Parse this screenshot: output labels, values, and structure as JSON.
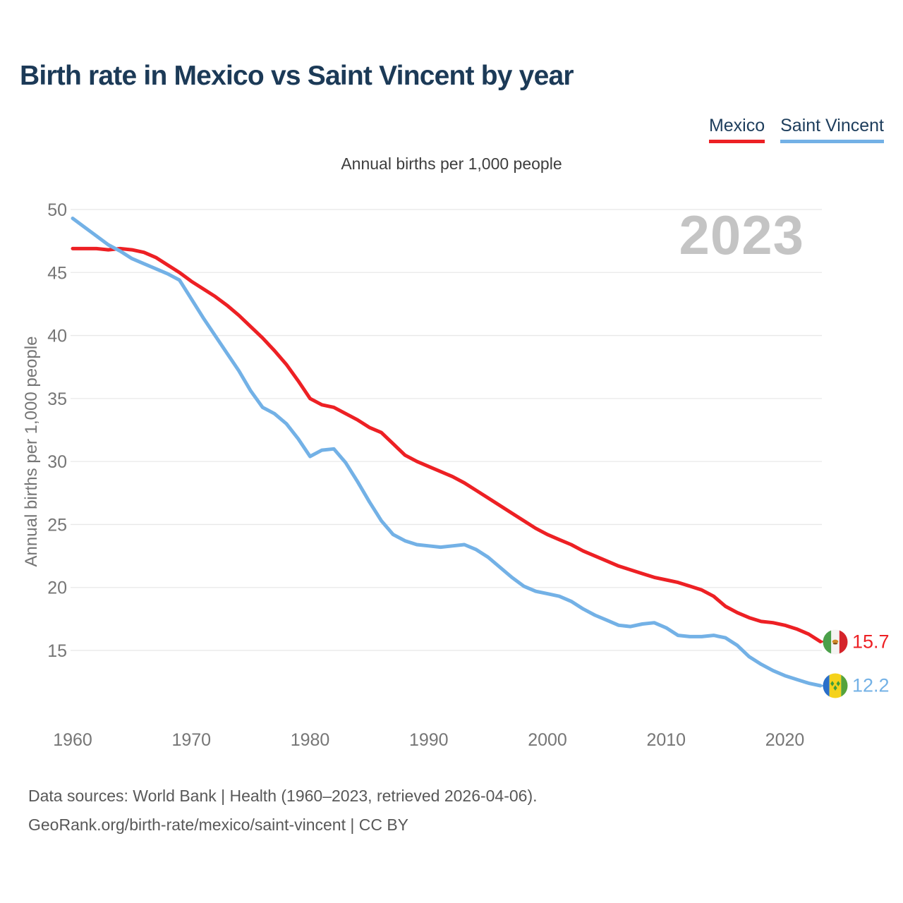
{
  "header": {
    "title": "Birth rate in Mexico vs Saint Vincent by year"
  },
  "legend": {
    "items": [
      {
        "label": "Mexico",
        "color": "#ed2024"
      },
      {
        "label": "Saint Vincent",
        "color": "#73b1e6"
      }
    ]
  },
  "chart": {
    "subtitle": "Annual births per 1,000 people",
    "y_axis_title": "Annual births per 1,000 people",
    "watermark": "2023",
    "end_labels": {
      "mexico": "15.7",
      "saint_vincent": "12.2"
    }
  },
  "footer": {
    "line1": "Data sources: World Bank | Health (1960–2023, retrieved 2026-04-06).",
    "line2": "GeoRank.org/birth-rate/mexico/saint-vincent | CC BY"
  },
  "chart_data": {
    "type": "line",
    "title": "Birth rate in Mexico vs Saint Vincent by year",
    "subtitle": "Annual births per 1,000 people",
    "ylabel": "Annual births per 1,000 people",
    "x_start": 1960,
    "x_end": 2023,
    "x_ticks": [
      1960,
      1970,
      1980,
      1990,
      2000,
      2010,
      2020
    ],
    "y_ticks": [
      15,
      20,
      25,
      30,
      35,
      40,
      45,
      50
    ],
    "ylim": [
      15,
      50
    ],
    "grid": "horizontal",
    "legend_position": "top-right",
    "colors": {
      "grid": "#e8e8e8",
      "tick_text": "#767676",
      "watermark": "#c4c4c4"
    },
    "series": [
      {
        "name": "Mexico",
        "color": "#ed2024",
        "end_label": "15.7",
        "flag_icon": "mexico-flag-icon",
        "values": [
          46.9,
          46.9,
          46.9,
          46.8,
          46.9,
          46.8,
          46.6,
          46.2,
          45.6,
          45.0,
          44.3,
          43.7,
          43.1,
          42.4,
          41.6,
          40.7,
          39.8,
          38.8,
          37.7,
          36.4,
          35.0,
          34.5,
          34.3,
          33.8,
          33.3,
          32.7,
          32.3,
          31.4,
          30.5,
          30.0,
          29.6,
          29.2,
          28.8,
          28.3,
          27.7,
          27.1,
          26.5,
          25.9,
          25.3,
          24.7,
          24.2,
          23.8,
          23.4,
          22.9,
          22.5,
          22.1,
          21.7,
          21.4,
          21.1,
          20.8,
          20.6,
          20.4,
          20.1,
          19.8,
          19.3,
          18.5,
          18.0,
          17.6,
          17.3,
          17.2,
          17.0,
          16.7,
          16.3,
          15.7
        ]
      },
      {
        "name": "Saint Vincent",
        "color": "#73b1e6",
        "end_label": "12.2",
        "flag_icon": "saint-vincent-flag-icon",
        "values": [
          49.3,
          48.6,
          47.9,
          47.2,
          46.7,
          46.1,
          45.7,
          45.3,
          44.9,
          44.4,
          42.9,
          41.4,
          40.0,
          38.6,
          37.2,
          35.6,
          34.3,
          33.8,
          33.0,
          31.8,
          30.4,
          30.9,
          31.0,
          29.9,
          28.4,
          26.8,
          25.3,
          24.2,
          23.7,
          23.4,
          23.3,
          23.2,
          23.3,
          23.4,
          23.0,
          22.4,
          21.6,
          20.8,
          20.1,
          19.7,
          19.5,
          19.3,
          18.9,
          18.3,
          17.8,
          17.4,
          17.0,
          16.9,
          17.1,
          17.2,
          16.8,
          16.2,
          16.1,
          16.1,
          16.2,
          16.0,
          15.4,
          14.5,
          13.9,
          13.4,
          13.0,
          12.7,
          12.4,
          12.2
        ]
      }
    ]
  }
}
